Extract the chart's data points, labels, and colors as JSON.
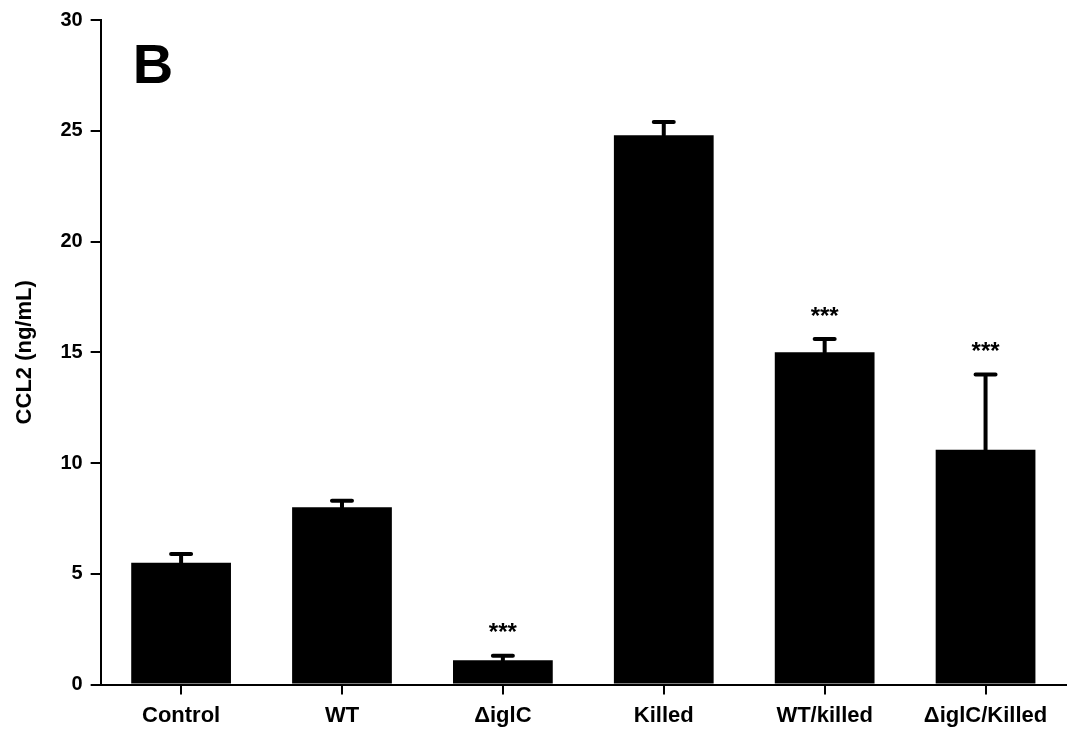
{
  "chart_data": {
    "type": "bar",
    "ylabel": "CCL2 (ng/mL)",
    "categories": [
      "Control",
      "WT",
      "ΔiglC",
      "Killed",
      "WT/killed",
      "ΔiglC/Killed"
    ],
    "values": [
      5.5,
      8.0,
      1.1,
      24.8,
      15.0,
      10.6
    ],
    "errors": [
      [
        5.5,
        5.9
      ],
      [
        8.0,
        8.3
      ],
      [
        1.1,
        1.3
      ],
      [
        24.8,
        25.4
      ],
      [
        15.0,
        15.6
      ],
      [
        10.6,
        14.0
      ]
    ],
    "color": "#000000",
    "ylim": [
      0,
      30
    ],
    "yticks": [
      0,
      5,
      10,
      15,
      20,
      25,
      30
    ],
    "grid": false,
    "legend": false,
    "annotations": [
      "B",
      {
        "text": "***",
        "x": "ΔiglC",
        "y": 1.3
      },
      {
        "text": "***",
        "x": "WT/killed",
        "y": 15.6
      },
      {
        "text": "***",
        "x": "ΔiglC/Killed",
        "y": 14.0
      }
    ]
  }
}
